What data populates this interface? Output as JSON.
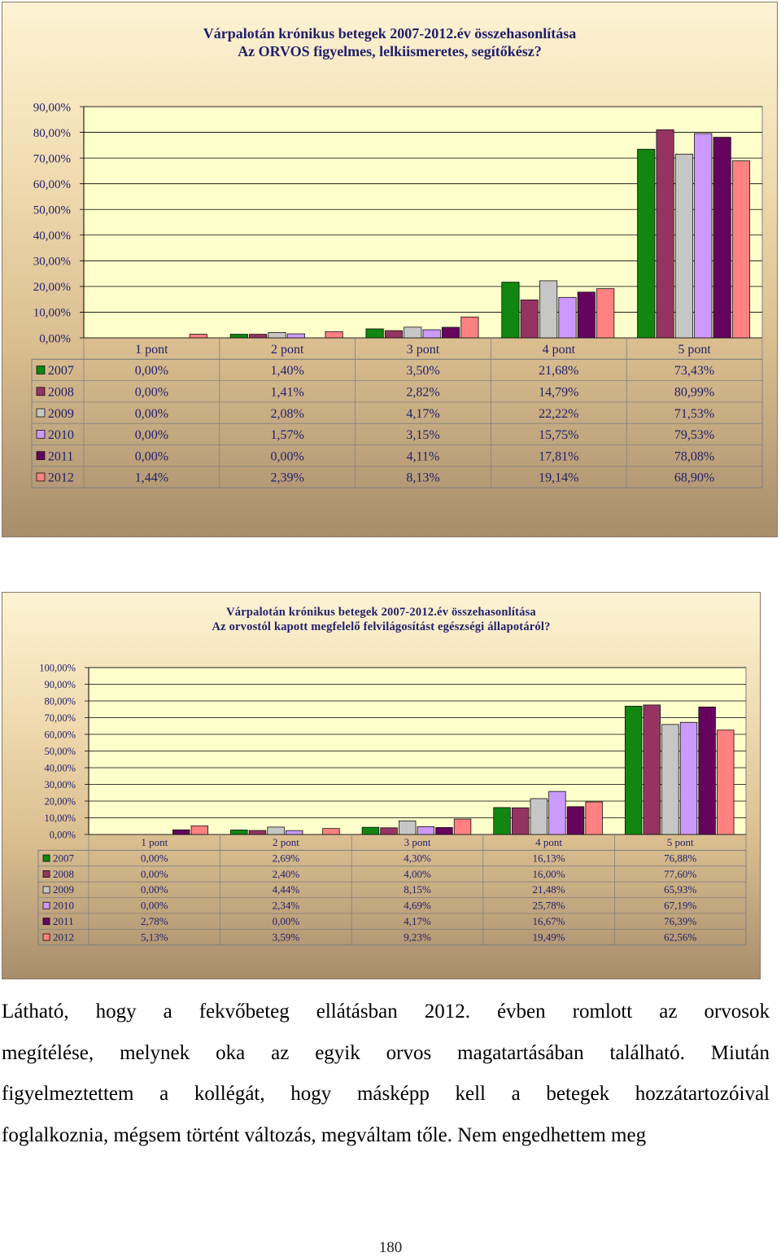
{
  "chart_data": [
    {
      "type": "bar",
      "title": "Várpalotán krónikus betegek 2007-2012.év összehasonlítása",
      "subtitle": "Az ORVOS figyelmes, lelkiismeretes, segítőkész?",
      "categories": [
        "1 pont",
        "2 pont",
        "3 pont",
        "4 pont",
        "5 pont"
      ],
      "yticks": [
        "0,00%",
        "10,00%",
        "20,00%",
        "30,00%",
        "40,00%",
        "50,00%",
        "60,00%",
        "70,00%",
        "80,00%",
        "90,00%"
      ],
      "ylim": [
        0,
        90
      ],
      "grid": true,
      "legend": "data-table-below",
      "series": [
        {
          "name": "2007",
          "color": "#118611",
          "values": [
            0.0,
            1.4,
            3.5,
            21.68,
            73.43
          ],
          "labels": [
            "0,00%",
            "1,40%",
            "3,50%",
            "21,68%",
            "73,43%"
          ]
        },
        {
          "name": "2008",
          "color": "#953463",
          "values": [
            0.0,
            1.41,
            2.82,
            14.79,
            80.99
          ],
          "labels": [
            "0,00%",
            "1,41%",
            "2,82%",
            "14,79%",
            "80,99%"
          ]
        },
        {
          "name": "2009",
          "color": "#c6c6c6",
          "values": [
            0.0,
            2.08,
            4.17,
            22.22,
            71.53
          ],
          "labels": [
            "0,00%",
            "2,08%",
            "4,17%",
            "22,22%",
            "71,53%"
          ]
        },
        {
          "name": "2010",
          "color": "#cc99ff",
          "values": [
            0.0,
            1.57,
            3.15,
            15.75,
            79.53
          ],
          "labels": [
            "0,00%",
            "1,57%",
            "3,15%",
            "15,75%",
            "79,53%"
          ]
        },
        {
          "name": "2011",
          "color": "#66035f",
          "values": [
            0.0,
            0.0,
            4.11,
            17.81,
            78.08
          ],
          "labels": [
            "0,00%",
            "0,00%",
            "4,11%",
            "17,81%",
            "78,08%"
          ]
        },
        {
          "name": "2012",
          "color": "#ff8181",
          "values": [
            1.44,
            2.39,
            8.13,
            19.14,
            68.9
          ],
          "labels": [
            "1,44%",
            "2,39%",
            "8,13%",
            "19,14%",
            "68,90%"
          ]
        }
      ]
    },
    {
      "type": "bar",
      "title": "Várpalotán krónikus betegek 2007-2012.év összehasonlítása",
      "subtitle": "Az orvostól kapott megfelelő felvilágosítást egészségi állapotáról?",
      "categories": [
        "1 pont",
        "2 pont",
        "3 pont",
        "4 pont",
        "5 pont"
      ],
      "yticks": [
        "0,00%",
        "10,00%",
        "20,00%",
        "30,00%",
        "40,00%",
        "50,00%",
        "60,00%",
        "70,00%",
        "80,00%",
        "90,00%",
        "100,00%"
      ],
      "ylim": [
        0,
        100
      ],
      "grid": true,
      "legend": "data-table-below",
      "series": [
        {
          "name": "2007",
          "color": "#118611",
          "values": [
            0.0,
            2.69,
            4.3,
            16.13,
            76.88
          ],
          "labels": [
            "0,00%",
            "2,69%",
            "4,30%",
            "16,13%",
            "76,88%"
          ]
        },
        {
          "name": "2008",
          "color": "#953463",
          "values": [
            0.0,
            2.4,
            4.0,
            16.0,
            77.6
          ],
          "labels": [
            "0,00%",
            "2,40%",
            "4,00%",
            "16,00%",
            "77,60%"
          ]
        },
        {
          "name": "2009",
          "color": "#c6c6c6",
          "values": [
            0.0,
            4.44,
            8.15,
            21.48,
            65.93
          ],
          "labels": [
            "0,00%",
            "4,44%",
            "8,15%",
            "21,48%",
            "65,93%"
          ]
        },
        {
          "name": "2010",
          "color": "#cc99ff",
          "values": [
            0.0,
            2.34,
            4.69,
            25.78,
            67.19
          ],
          "labels": [
            "0,00%",
            "2,34%",
            "4,69%",
            "25,78%",
            "67,19%"
          ]
        },
        {
          "name": "2011",
          "color": "#66035f",
          "values": [
            2.78,
            0.0,
            4.17,
            16.67,
            76.39
          ],
          "labels": [
            "2,78%",
            "0,00%",
            "4,17%",
            "16,67%",
            "76,39%"
          ]
        },
        {
          "name": "2012",
          "color": "#ff8181",
          "values": [
            5.13,
            3.59,
            9.23,
            19.49,
            62.56
          ],
          "labels": [
            "5,13%",
            "3,59%",
            "9,23%",
            "19,49%",
            "62,56%"
          ]
        }
      ]
    }
  ],
  "paragraph": {
    "lines": [
      "Látható, hogy a fekvőbeteg ellátásban 2012. évben romlott az orvosok",
      "megítélése, melynek oka az egyik orvos magatartásában található. Miután",
      "figyelmeztettem a kollégát, hogy másképp kell a betegek hozzátartozóival",
      "foglalkoznia, mégsem történt változás, megváltam tőle. Nem engedhettem meg"
    ]
  },
  "page_number": "180"
}
